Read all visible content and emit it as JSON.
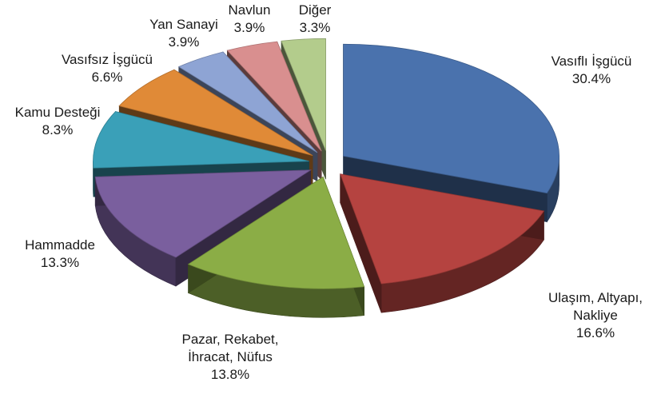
{
  "chart_data": {
    "type": "pie",
    "title": "",
    "style": "3d-exploded",
    "legend": "none",
    "slices": [
      {
        "label": "Vasıflı İşgücü",
        "value": 30.4,
        "value_label": "30.4%",
        "color": "#4a72ad"
      },
      {
        "label": "Ulaşım, Altyapı, Nakliye",
        "value": 16.6,
        "value_label": "16.6%",
        "color": "#b54340"
      },
      {
        "label": "Pazar, Rekabet, İhracat, Nüfus",
        "value": 13.8,
        "value_label": "13.8%",
        "color": "#8bad46"
      },
      {
        "label": "Hammadde",
        "value": 13.3,
        "value_label": "13.3%",
        "color": "#7a5f9e"
      },
      {
        "label": "Kamu Desteği",
        "value": 8.3,
        "value_label": "8.3%",
        "color": "#3aa0b8"
      },
      {
        "label": "Vasıfsız İşgücü",
        "value": 6.6,
        "value_label": "6.6%",
        "color": "#e08a37"
      },
      {
        "label": "Yan Sanayi",
        "value": 3.9,
        "value_label": "3.9%",
        "color": "#8ea4d4"
      },
      {
        "label": "Navlun",
        "value": 3.9,
        "value_label": "3.9%",
        "color": "#d98f8f"
      },
      {
        "label": "Diğer",
        "value": 3.3,
        "value_label": "3.3%",
        "color": "#b3cc8c"
      }
    ]
  }
}
